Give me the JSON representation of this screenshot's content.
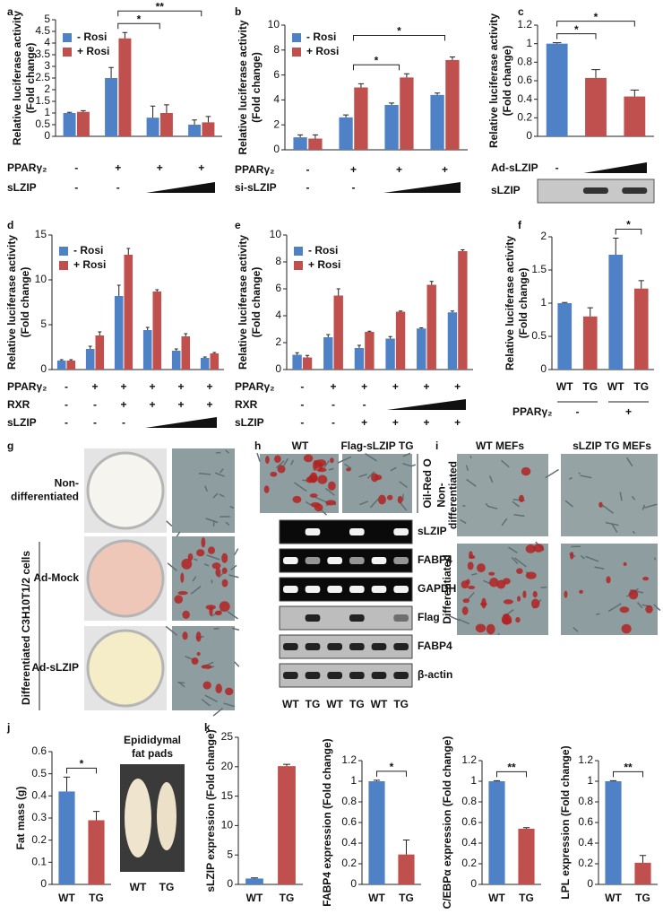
{
  "chart_data": [
    {
      "type": "bar",
      "panel": "a",
      "y_label": [
        "Relative luciferase activity",
        "(Fold change)"
      ],
      "ylim": [
        0,
        5
      ],
      "yticks": [
        0,
        0.5,
        1,
        1.5,
        2,
        2.5,
        3,
        3.5,
        4,
        4.5,
        5
      ],
      "series": [
        {
          "name": "- Rosi",
          "color": "#4f81c7",
          "values": [
            1,
            2.5,
            0.8,
            0.5
          ],
          "errors": [
            0.03,
            0.45,
            0.5,
            0.2
          ]
        },
        {
          "name": "+ Rosi",
          "color": "#c0504d",
          "values": [
            1.05,
            4.2,
            1.0,
            0.6
          ],
          "errors": [
            0.05,
            0.25,
            0.35,
            0.25
          ]
        }
      ],
      "significance": [
        {
          "label": "*",
          "from": 1,
          "to": 2
        },
        {
          "label": "**",
          "from": 1,
          "to": 3
        }
      ],
      "conditions": [
        {
          "label": "PPARγ₂",
          "values": [
            "-",
            "+",
            "+",
            "+"
          ]
        },
        {
          "label": "sLZIP",
          "values": [
            "-",
            "-",
            null,
            null
          ]
        }
      ]
    },
    {
      "type": "bar",
      "panel": "b",
      "y_label": [
        "Relative luciferase activity",
        "(Fold change)"
      ],
      "ylim": [
        0,
        10
      ],
      "yticks": [
        0,
        2,
        4,
        6,
        8,
        10
      ],
      "series": [
        {
          "name": "- Rosi",
          "color": "#4f81c7",
          "values": [
            1,
            2.6,
            3.6,
            4.4
          ],
          "errors": [
            0.2,
            0.2,
            0.15,
            0.15
          ]
        },
        {
          "name": "+ Rosi",
          "color": "#c0504d",
          "values": [
            0.9,
            5,
            5.8,
            7.2
          ],
          "errors": [
            0.3,
            0.3,
            0.3,
            0.25
          ]
        }
      ],
      "significance": [
        {
          "label": "*",
          "from": 1,
          "to": 2
        },
        {
          "label": "*",
          "from": 1,
          "to": 3
        }
      ],
      "conditions": [
        {
          "label": "PPARγ₂",
          "values": [
            "-",
            "+",
            "+",
            "+"
          ]
        },
        {
          "label": "si-sLZIP",
          "values": [
            "-",
            "-",
            null,
            null
          ]
        }
      ]
    },
    {
      "type": "bar",
      "panel": "c",
      "y_label": [
        "Relative luciferase activity",
        "(Fold change)"
      ],
      "ylim": [
        0,
        1.2
      ],
      "yticks": [
        0,
        0.2,
        0.4,
        0.6,
        0.8,
        1,
        1.2
      ],
      "values": [
        1,
        0.63,
        0.43
      ],
      "errors": [
        0.01,
        0.09,
        0.07
      ],
      "colors": [
        "#4f81c7",
        "#c0504d",
        "#c0504d"
      ],
      "significance": [
        {
          "label": "*",
          "from": 0,
          "to": 1
        },
        {
          "label": "*",
          "from": 0,
          "to": 2
        }
      ],
      "conditions": [
        {
          "label": "Ad-sLZIP",
          "values": [
            "-",
            null,
            null
          ]
        }
      ]
    },
    {
      "type": "bar",
      "panel": "d",
      "y_label": [
        "Relative luciferase activity",
        "(Fold change)"
      ],
      "ylim": [
        0,
        15
      ],
      "yticks": [
        0,
        5,
        10,
        15
      ],
      "series": [
        {
          "name": "- Rosi",
          "color": "#4f81c7",
          "values": [
            1,
            2.3,
            8.2,
            4.4,
            2.1,
            1.3
          ],
          "errors": [
            0.1,
            0.3,
            1.2,
            0.3,
            0.2,
            0.1
          ]
        },
        {
          "name": "+ Rosi",
          "color": "#c0504d",
          "values": [
            1,
            3.8,
            12.8,
            8.7,
            3.7,
            1.8
          ],
          "errors": [
            0.1,
            0.4,
            0.7,
            0.2,
            0.3,
            0.1
          ]
        }
      ],
      "conditions": [
        {
          "label": "PPARγ₂",
          "values": [
            "-",
            "+",
            "+",
            "+",
            "+",
            "+"
          ]
        },
        {
          "label": "RXR",
          "values": [
            "-",
            "-",
            "+",
            "+",
            "+",
            "+"
          ]
        },
        {
          "label": "sLZIP",
          "values": [
            "-",
            "-",
            "-",
            null,
            null,
            null
          ]
        }
      ]
    },
    {
      "type": "bar",
      "panel": "e",
      "y_label": [
        "Relative luciferase activity",
        "(Fold change)"
      ],
      "ylim": [
        0,
        10
      ],
      "yticks": [
        0,
        2,
        4,
        6,
        8,
        10
      ],
      "series": [
        {
          "name": "- Rosi",
          "color": "#4f81c7",
          "values": [
            1.1,
            2.4,
            1.6,
            2.3,
            3.05,
            4.25
          ],
          "errors": [
            0.15,
            0.2,
            0.2,
            0.15,
            0.05,
            0.1
          ]
        },
        {
          "name": "+ Rosi",
          "color": "#c0504d",
          "values": [
            0.9,
            5.5,
            2.8,
            4.3,
            6.3,
            8.8
          ],
          "errors": [
            0.15,
            0.5,
            0.05,
            0.05,
            0.25,
            0.1
          ]
        }
      ],
      "conditions": [
        {
          "label": "PPARγ₂",
          "values": [
            "-",
            "+",
            "+",
            "+",
            "+",
            "+"
          ]
        },
        {
          "label": "RXR",
          "values": [
            "-",
            "-",
            "-",
            null,
            null,
            null
          ]
        },
        {
          "label": "sLZIP",
          "values": [
            "-",
            "-",
            "+",
            "+",
            "+",
            "+"
          ]
        }
      ]
    },
    {
      "type": "bar",
      "panel": "f",
      "y_label": [
        "Relative luciferase activity",
        "(Fold change)"
      ],
      "ylim": [
        0,
        2
      ],
      "yticks": [
        0,
        0.5,
        1,
        1.5,
        2
      ],
      "categories": [
        "WT",
        "TG",
        "WT",
        "TG"
      ],
      "values": [
        1,
        0.8,
        1.73,
        1.22
      ],
      "errors": [
        0.01,
        0.13,
        0.25,
        0.12
      ],
      "colors": [
        "#4f81c7",
        "#c0504d",
        "#4f81c7",
        "#c0504d"
      ],
      "significance": [
        {
          "label": "*",
          "from": 2,
          "to": 3
        }
      ],
      "conditions": [
        {
          "label": "PPARγ₂",
          "values": [
            "-",
            "+"
          ]
        }
      ]
    },
    {
      "type": "bar",
      "panel": "j",
      "y_label": [
        "Fat mass (g)"
      ],
      "ylim": [
        0,
        0.6
      ],
      "yticks": [
        0,
        0.1,
        0.2,
        0.3,
        0.4,
        0.5,
        0.6
      ],
      "categories": [
        "WT",
        "TG"
      ],
      "values": [
        0.42,
        0.29
      ],
      "errors": [
        0.065,
        0.04
      ],
      "colors": [
        "#4f81c7",
        "#c0504d"
      ],
      "significance": [
        {
          "label": "*",
          "from": 0,
          "to": 1
        }
      ]
    },
    {
      "type": "bar",
      "panel": "k",
      "y_label": [
        "sLZIP expression (Fold change)"
      ],
      "ylim": [
        0,
        25
      ],
      "yticks": [
        0,
        5,
        10,
        15,
        20,
        25
      ],
      "categories": [
        "WT",
        "TG"
      ],
      "values": [
        1,
        20.1
      ],
      "errors": [
        0.1,
        0.3
      ],
      "colors": [
        "#4f81c7",
        "#c0504d"
      ]
    },
    {
      "type": "bar",
      "y_label": [
        "FABP4 expression (Fold change)"
      ],
      "ylim": [
        0,
        1.2
      ],
      "yticks": [
        0,
        0.2,
        0.4,
        0.6,
        0.8,
        1,
        1.2
      ],
      "categories": [
        "WT",
        "TG"
      ],
      "values": [
        1,
        0.29
      ],
      "errors": [
        0.01,
        0.14
      ],
      "colors": [
        "#4f81c7",
        "#c0504d"
      ],
      "significance": [
        {
          "label": "*",
          "from": 0,
          "to": 1
        }
      ]
    },
    {
      "type": "bar",
      "y_label": [
        "C/EBPα expression (Fold change)"
      ],
      "ylim": [
        0,
        1.2
      ],
      "yticks": [
        0,
        0.2,
        0.4,
        0.6,
        0.8,
        1,
        1.2
      ],
      "categories": [
        "WT",
        "TG"
      ],
      "values": [
        1,
        0.54
      ],
      "errors": [
        0.005,
        0.01
      ],
      "colors": [
        "#4f81c7",
        "#c0504d"
      ],
      "significance": [
        {
          "label": "**",
          "from": 0,
          "to": 1
        }
      ]
    },
    {
      "type": "bar",
      "y_label": [
        "LPL expression (Fold change)"
      ],
      "ylim": [
        0,
        1.2
      ],
      "yticks": [
        0,
        0.2,
        0.4,
        0.6,
        0.8,
        1,
        1.2
      ],
      "categories": [
        "WT",
        "TG"
      ],
      "values": [
        1,
        0.21
      ],
      "errors": [
        0.005,
        0.07
      ],
      "colors": [
        "#4f81c7",
        "#c0504d"
      ],
      "significance": [
        {
          "label": "**",
          "from": 0,
          "to": 1
        }
      ]
    }
  ],
  "figures": {
    "c_blot": {
      "label": "sLZIP"
    },
    "g": {
      "panel": "g",
      "group_label": "Differentiated C3H10T1/2 cells",
      "row_labels": [
        [
          "Non-",
          "differentiated"
        ],
        [
          "Ad-Mock"
        ],
        [
          "Ad-sLZIP"
        ]
      ]
    },
    "h": {
      "panel": "h",
      "columns": [
        "WT",
        "Flag-sLZIP TG"
      ],
      "stain": "Oil-Red O",
      "bands": [
        "sLZIP",
        "FABP4",
        "GAPDH",
        "Flag",
        "FABP4",
        "β-actin"
      ],
      "lanes": [
        "WT",
        "TG",
        "WT",
        "TG",
        "WT",
        "TG"
      ]
    },
    "i": {
      "panel": "i",
      "columns": [
        "WT MEFs",
        "sLZIP TG MEFs"
      ],
      "row_labels": [
        [
          "Non-",
          "differentiated"
        ],
        [
          "Differentiated"
        ]
      ]
    },
    "j_photo": {
      "title": [
        "Epididymal",
        "fat pads"
      ],
      "labels": [
        "WT",
        "TG"
      ]
    }
  }
}
